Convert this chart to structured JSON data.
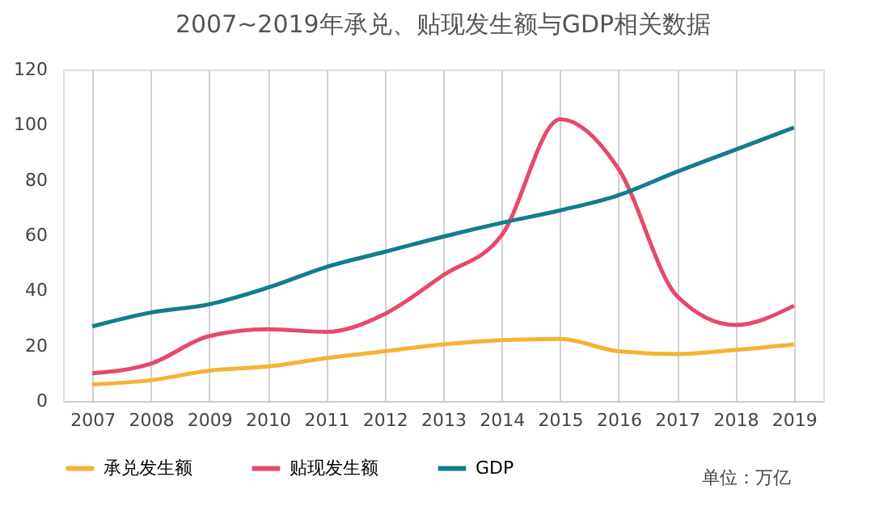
{
  "chart_data": {
    "type": "line",
    "title": "2007~2019年承兑、贴现发生额与GDP相关数据",
    "categories": [
      "2007",
      "2008",
      "2009",
      "2010",
      "2011",
      "2012",
      "2013",
      "2014",
      "2015",
      "2016",
      "2017",
      "2018",
      "2019"
    ],
    "series": [
      {
        "name": "承兑发生额",
        "color": "#f5b335",
        "values": [
          6,
          7.5,
          11,
          12.5,
          15.5,
          18,
          20.5,
          22,
          22.5,
          18,
          17,
          18.5,
          20.5
        ]
      },
      {
        "name": "贴现发生额",
        "color": "#e8486b",
        "values": [
          10,
          13.5,
          23.5,
          26,
          25,
          31.5,
          45.5,
          60,
          102,
          84,
          38,
          27.5,
          34.5
        ]
      },
      {
        "name": "GDP",
        "color": "#127d8c",
        "values": [
          27,
          32,
          35,
          41,
          48.5,
          54,
          59.5,
          64.5,
          69,
          74.5,
          83,
          91,
          99
        ]
      }
    ],
    "ylim": [
      0,
      120
    ],
    "yticks": [
      0,
      20,
      40,
      60,
      80,
      100,
      120
    ],
    "grid": "x",
    "legend": "bottom",
    "marker": "none",
    "line_style": "solid",
    "annotations": [
      "单位：万亿"
    ]
  }
}
